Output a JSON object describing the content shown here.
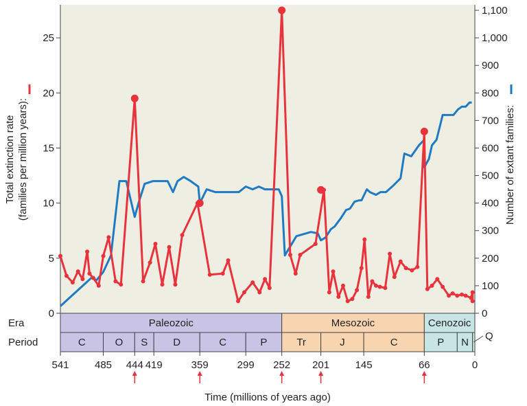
{
  "colors": {
    "plot_bg": "#efeee2",
    "extinction": "#e8323c",
    "families": "#1f7ac4",
    "paleozoic": "#c9c4e6",
    "mesozoic": "#f9d4b1",
    "cenozoic": "#c7e6e3",
    "axis": "#444444",
    "arrow": "#e8323c"
  },
  "chart_data": {
    "type": "line",
    "xlabel": "Time (millions of years ago)",
    "ylabel_left": "Total extinction rate (families per million years):",
    "ylabel_right": "Number of extant families:",
    "xlim": [
      541,
      0
    ],
    "ylim_left": [
      0,
      28
    ],
    "ylim_right": [
      0,
      1120
    ],
    "x_ticks": [
      541,
      485,
      444,
      419,
      359,
      299,
      252,
      201,
      145,
      66,
      0
    ],
    "y_ticks_left": [
      0,
      5,
      10,
      15,
      20,
      25
    ],
    "y_ticks_right": [
      "0",
      "100",
      "200",
      "300",
      "400",
      "500",
      "600",
      "700",
      "800",
      "900",
      "1,000",
      "1,100"
    ],
    "mass_extinction_times": [
      444,
      359,
      252,
      201,
      66
    ],
    "series": [
      {
        "axis": "left",
        "x": [
          541,
          533,
          525,
          518,
          512,
          506,
          503,
          498,
          491,
          485,
          478,
          469,
          462,
          444,
          433,
          424,
          417,
          408,
          399,
          391,
          382,
          362,
          346,
          329,
          322,
          309,
          301,
          290,
          281,
          274,
          268,
          252,
          241,
          234,
          228,
          208,
          197,
          190,
          185,
          178,
          172,
          166,
          160,
          154,
          148,
          144,
          139,
          134,
          129,
          124,
          117,
          111,
          105,
          97,
          90,
          82,
          75,
          66,
          62,
          56,
          49,
          42,
          34,
          29,
          23,
          17,
          12,
          5,
          3,
          3
        ],
        "y": [
          5.2,
          3.4,
          2.8,
          3.8,
          3.1,
          5.6,
          3.6,
          3.2,
          2.5,
          5.2,
          6.9,
          2.9,
          2.6,
          19.5,
          2.9,
          4.6,
          6.3,
          2.6,
          6.0,
          2.6,
          7.1,
          10,
          3.5,
          3.6,
          4.8,
          1.1,
          1.9,
          2.8,
          1.9,
          3.1,
          2.3,
          27.5,
          5.3,
          3.6,
          5.3,
          6.3,
          11.2,
          1.9,
          3.8,
          1.5,
          2.5,
          1.1,
          1.3,
          2.1,
          4.1,
          6.7,
          1.5,
          2.9,
          2.5,
          2.4,
          2.3,
          5.4,
          3.3,
          4.7,
          4.1,
          3.9,
          4.2,
          16.5,
          2.2,
          2.5,
          3.1,
          2.4,
          1.6,
          1.8,
          1.6,
          1.7,
          1.6,
          1.4,
          1.9,
          1.1
        ],
        "highlight_x": [
          444,
          359,
          252,
          201,
          66
        ],
        "highlight_y": [
          19.5,
          10,
          27.5,
          11.2,
          16.5
        ]
      },
      {
        "axis": "right",
        "x": [
          541,
          500,
          494,
          485,
          475,
          464,
          455,
          444,
          439,
          431,
          420,
          401,
          394,
          388,
          380,
          371,
          361,
          359,
          350,
          339,
          320,
          308,
          299,
          290,
          282,
          274,
          266,
          256,
          252,
          248,
          233,
          214,
          205,
          201,
          195,
          188,
          183,
          175,
          168,
          163,
          157,
          151,
          148,
          141,
          137,
          129,
          123,
          116,
          106,
          97,
          92,
          83,
          73,
          66,
          66,
          60,
          56,
          50,
          42,
          28,
          22,
          17,
          12,
          7,
          4
        ],
        "y": [
          26,
          130,
          120,
          150,
          210,
          480,
          480,
          350,
          400,
          470,
          480,
          480,
          440,
          480,
          495,
          480,
          460,
          400,
          450,
          440,
          440,
          440,
          460,
          450,
          460,
          450,
          450,
          450,
          425,
          210,
          280,
          295,
          290,
          265,
          275,
          305,
          315,
          345,
          375,
          380,
          405,
          410,
          410,
          450,
          440,
          430,
          440,
          440,
          465,
          490,
          580,
          570,
          610,
          630,
          530,
          560,
          610,
          630,
          720,
          720,
          740,
          750,
          750,
          765,
          765
        ]
      }
    ],
    "eras": [
      {
        "label": "Paleozoic",
        "start": 541,
        "end": 252
      },
      {
        "label": "Mesozoic",
        "start": 252,
        "end": 66
      },
      {
        "label": "Cenozoic",
        "start": 66,
        "end": 0
      }
    ],
    "periods": [
      {
        "label": "C",
        "start": 541,
        "end": 485,
        "era": "paleozoic"
      },
      {
        "label": "O",
        "start": 485,
        "end": 444,
        "era": "paleozoic"
      },
      {
        "label": "S",
        "start": 444,
        "end": 419,
        "era": "paleozoic"
      },
      {
        "label": "D",
        "start": 419,
        "end": 359,
        "era": "paleozoic"
      },
      {
        "label": "C",
        "start": 359,
        "end": 299,
        "era": "paleozoic"
      },
      {
        "label": "P",
        "start": 299,
        "end": 252,
        "era": "paleozoic"
      },
      {
        "label": "Tr",
        "start": 252,
        "end": 201,
        "era": "mesozoic"
      },
      {
        "label": "J",
        "start": 201,
        "end": 145,
        "era": "mesozoic"
      },
      {
        "label": "C",
        "start": 145,
        "end": 66,
        "era": "mesozoic"
      },
      {
        "label": "P",
        "start": 66,
        "end": 23,
        "era": "cenozoic"
      },
      {
        "label": "N",
        "start": 23,
        "end": 3,
        "era": "cenozoic"
      },
      {
        "label": "",
        "start": 3,
        "end": 0,
        "era": "cenozoic"
      }
    ],
    "row_labels": {
      "era": "Era",
      "period": "Period",
      "quaternary": "Q"
    }
  }
}
